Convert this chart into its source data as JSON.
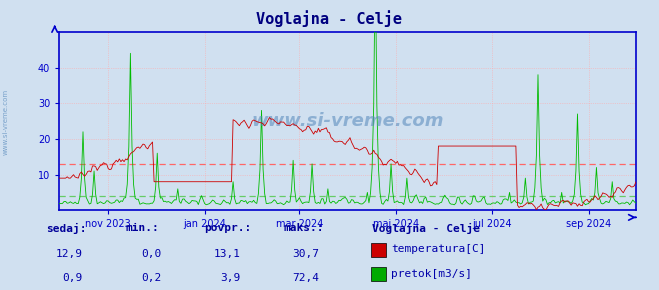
{
  "title": "Voglajna - Celje",
  "title_color": "#000080",
  "bg_color": "#d0e0f0",
  "plot_bg_color": "#d0e0f0",
  "temp_color": "#cc0000",
  "flow_color": "#00bb00",
  "avg_temp_color": "#ff6666",
  "avg_flow_color": "#66cc66",
  "grid_color": "#ff9999",
  "grid_color_x": "#cc99cc",
  "axis_color": "#0000cc",
  "tick_color": "#0000cc",
  "label_color": "#0000aa",
  "header_color": "#000099",
  "y_min": 0,
  "y_max": 50,
  "y_ticks": [
    10,
    20,
    30,
    40
  ],
  "temp_avg": 13.1,
  "flow_avg": 3.9,
  "watermark": "www.si-vreme.com",
  "legend_title": "Voglajna - Celje",
  "legend_items": [
    {
      "label": "temperatura[C]",
      "color": "#cc0000"
    },
    {
      "label": "pretok[m3/s]",
      "color": "#00aa00"
    }
  ],
  "stats_headers": [
    "sedaj:",
    "min.:",
    "povpr.:",
    "maks.:"
  ],
  "stats_temp": [
    "12,9",
    "0,0",
    "13,1",
    "30,7"
  ],
  "stats_flow": [
    "0,9",
    "0,2",
    "3,9",
    "72,4"
  ],
  "x_tick_labels": [
    "nov 2023",
    "jan 2024",
    "mar 2024",
    "maj 2024",
    "jul 2024",
    "sep 2024"
  ],
  "x_tick_positions": [
    31,
    92,
    152,
    213,
    274,
    335
  ],
  "n_days": 366,
  "sidebar_text": "www.si-vreme.com"
}
